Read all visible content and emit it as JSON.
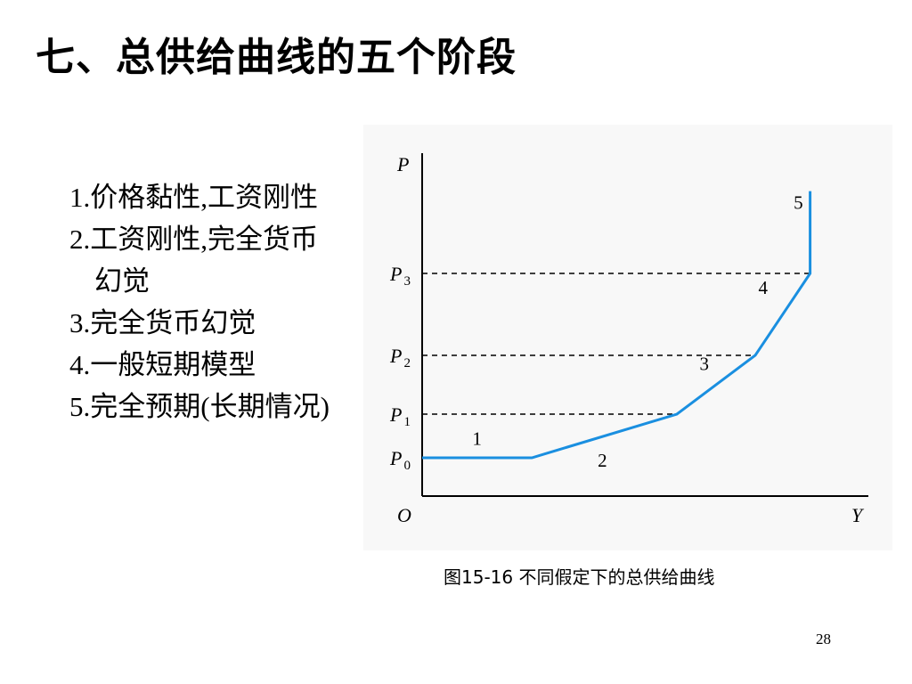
{
  "slide": {
    "title": "七、总供给曲线的五个阶段",
    "bullets": [
      "1.价格黏性,工资刚性",
      "2.工资刚性,完全货币幻觉",
      "3.完全货币幻觉",
      "4.一般短期模型",
      "5.完全预期(长期情况)"
    ],
    "caption": "图15-16  不同假定下的总供给曲线",
    "page_number": "28"
  },
  "chart_data": {
    "type": "line",
    "xlabel": "Y",
    "ylabel": "P",
    "origin_label": "O",
    "price_levels": [
      {
        "name": "P",
        "sub": "0",
        "value": 0
      },
      {
        "name": "P",
        "sub": "1",
        "value": 1
      },
      {
        "name": "P",
        "sub": "2",
        "value": 2
      },
      {
        "name": "P",
        "sub": "3",
        "value": 3
      }
    ],
    "curve_color": "#1a8fe0",
    "curve": {
      "x": [
        0,
        0.28,
        0.65,
        0.85,
        0.99,
        0.99
      ],
      "y": [
        0,
        0,
        1,
        2,
        3,
        4.4
      ]
    },
    "segment_labels": [
      {
        "text": "1",
        "x": 0.14,
        "y": 0.3
      },
      {
        "text": "2",
        "x": 0.46,
        "y": -0.2
      },
      {
        "text": "3",
        "x": 0.72,
        "y": 1.75
      },
      {
        "text": "4",
        "x": 0.87,
        "y": 2.75
      },
      {
        "text": "5",
        "x": 0.96,
        "y": 4.1
      }
    ],
    "dashed_guides": [
      1,
      2,
      3
    ]
  }
}
